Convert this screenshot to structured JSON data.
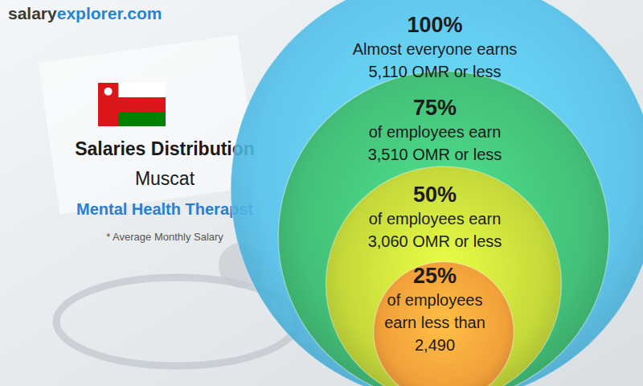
{
  "chart_data": {
    "type": "nested_circles",
    "logo": [
      "salary",
      "explorer.com"
    ],
    "title": "Salaries Distribution",
    "subtitle": "Muscat",
    "job": "Mental Health Therapst",
    "note": "* Average Monthly Salary",
    "categories": [
      "100%",
      "75%",
      "50%",
      "25%"
    ],
    "values": [
      100,
      75,
      50,
      25
    ],
    "value_labels": [
      "100%",
      "75%",
      "50%",
      "25%"
    ],
    "descriptions": [
      [
        "Almost everyone earns"
      ],
      [
        "of employees earn"
      ],
      [
        "of employees earn"
      ],
      [
        "of employees",
        "earn less than"
      ]
    ],
    "amount_labels": [
      "5,110 OMR or less",
      "3,510 OMR or less",
      "3,060 OMR or less",
      "2,490"
    ],
    "colors": [
      "#4fc0ec",
      "#43bf78",
      "#c4d83a",
      "#f2a03a"
    ]
  }
}
